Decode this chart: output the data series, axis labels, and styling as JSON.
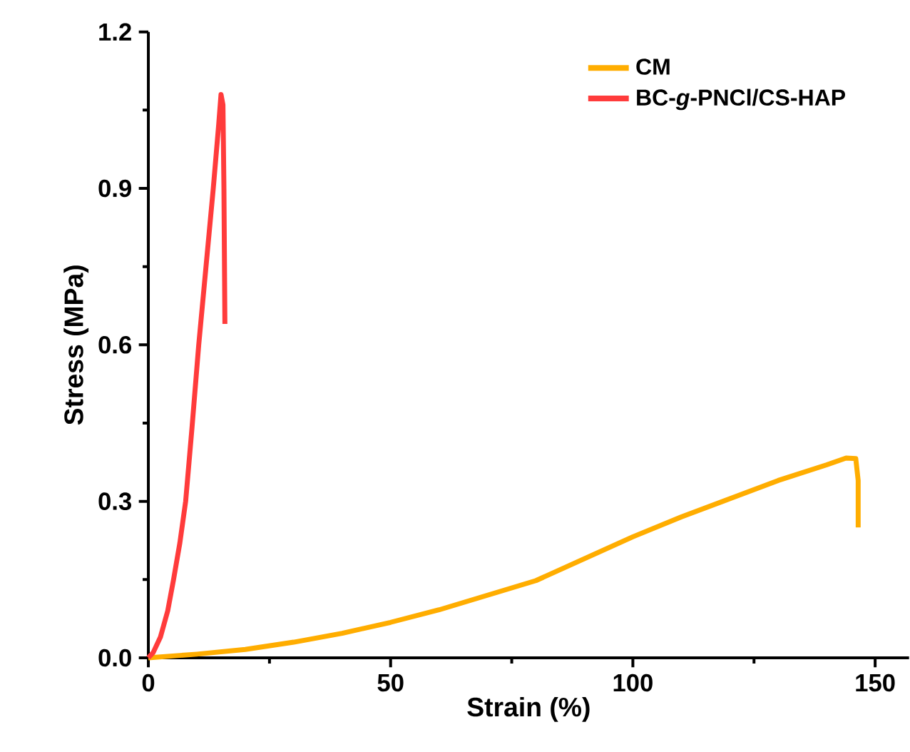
{
  "chart_data": {
    "type": "line",
    "xlabel": "Strain (%)",
    "ylabel": "Stress (MPa)",
    "xlim": [
      0,
      157
    ],
    "ylim": [
      0,
      1.2
    ],
    "xticks": [
      0,
      50,
      100,
      150
    ],
    "yticks": [
      {
        "value": 0,
        "label": "0.0"
      },
      {
        "value": 0.3,
        "label": "0.3"
      },
      {
        "value": 0.6,
        "label": "0.6"
      },
      {
        "value": 0.9,
        "label": "0.9"
      },
      {
        "value": 1.2,
        "label": "1.2"
      }
    ],
    "grid": false,
    "legend": "top right",
    "marker": "none",
    "line_style": "solid",
    "series": [
      {
        "name": "CM",
        "color": "#ffad00",
        "x": [
          0,
          10,
          20,
          30,
          40,
          50,
          60,
          70,
          80,
          90,
          100,
          110,
          120,
          130,
          140,
          144,
          146,
          146.5,
          146.5
        ],
        "values": [
          0,
          0.007,
          0.016,
          0.03,
          0.047,
          0.068,
          0.092,
          0.12,
          0.148,
          0.19,
          0.232,
          0.27,
          0.305,
          0.34,
          0.37,
          0.383,
          0.382,
          0.34,
          0.25
        ]
      },
      {
        "name": "BC-*g*-PNCl/CS-HAP",
        "color": "#ff3b3b",
        "x": [
          0,
          1,
          2.5,
          4,
          5.2,
          6.5,
          7.7,
          9,
          10.4,
          12,
          13.4,
          14.5,
          15,
          15.4,
          15.6,
          15.8
        ],
        "values": [
          0,
          0.01,
          0.04,
          0.09,
          0.15,
          0.22,
          0.3,
          0.44,
          0.6,
          0.76,
          0.9,
          1.02,
          1.08,
          1.06,
          0.9,
          0.64
        ]
      }
    ]
  }
}
